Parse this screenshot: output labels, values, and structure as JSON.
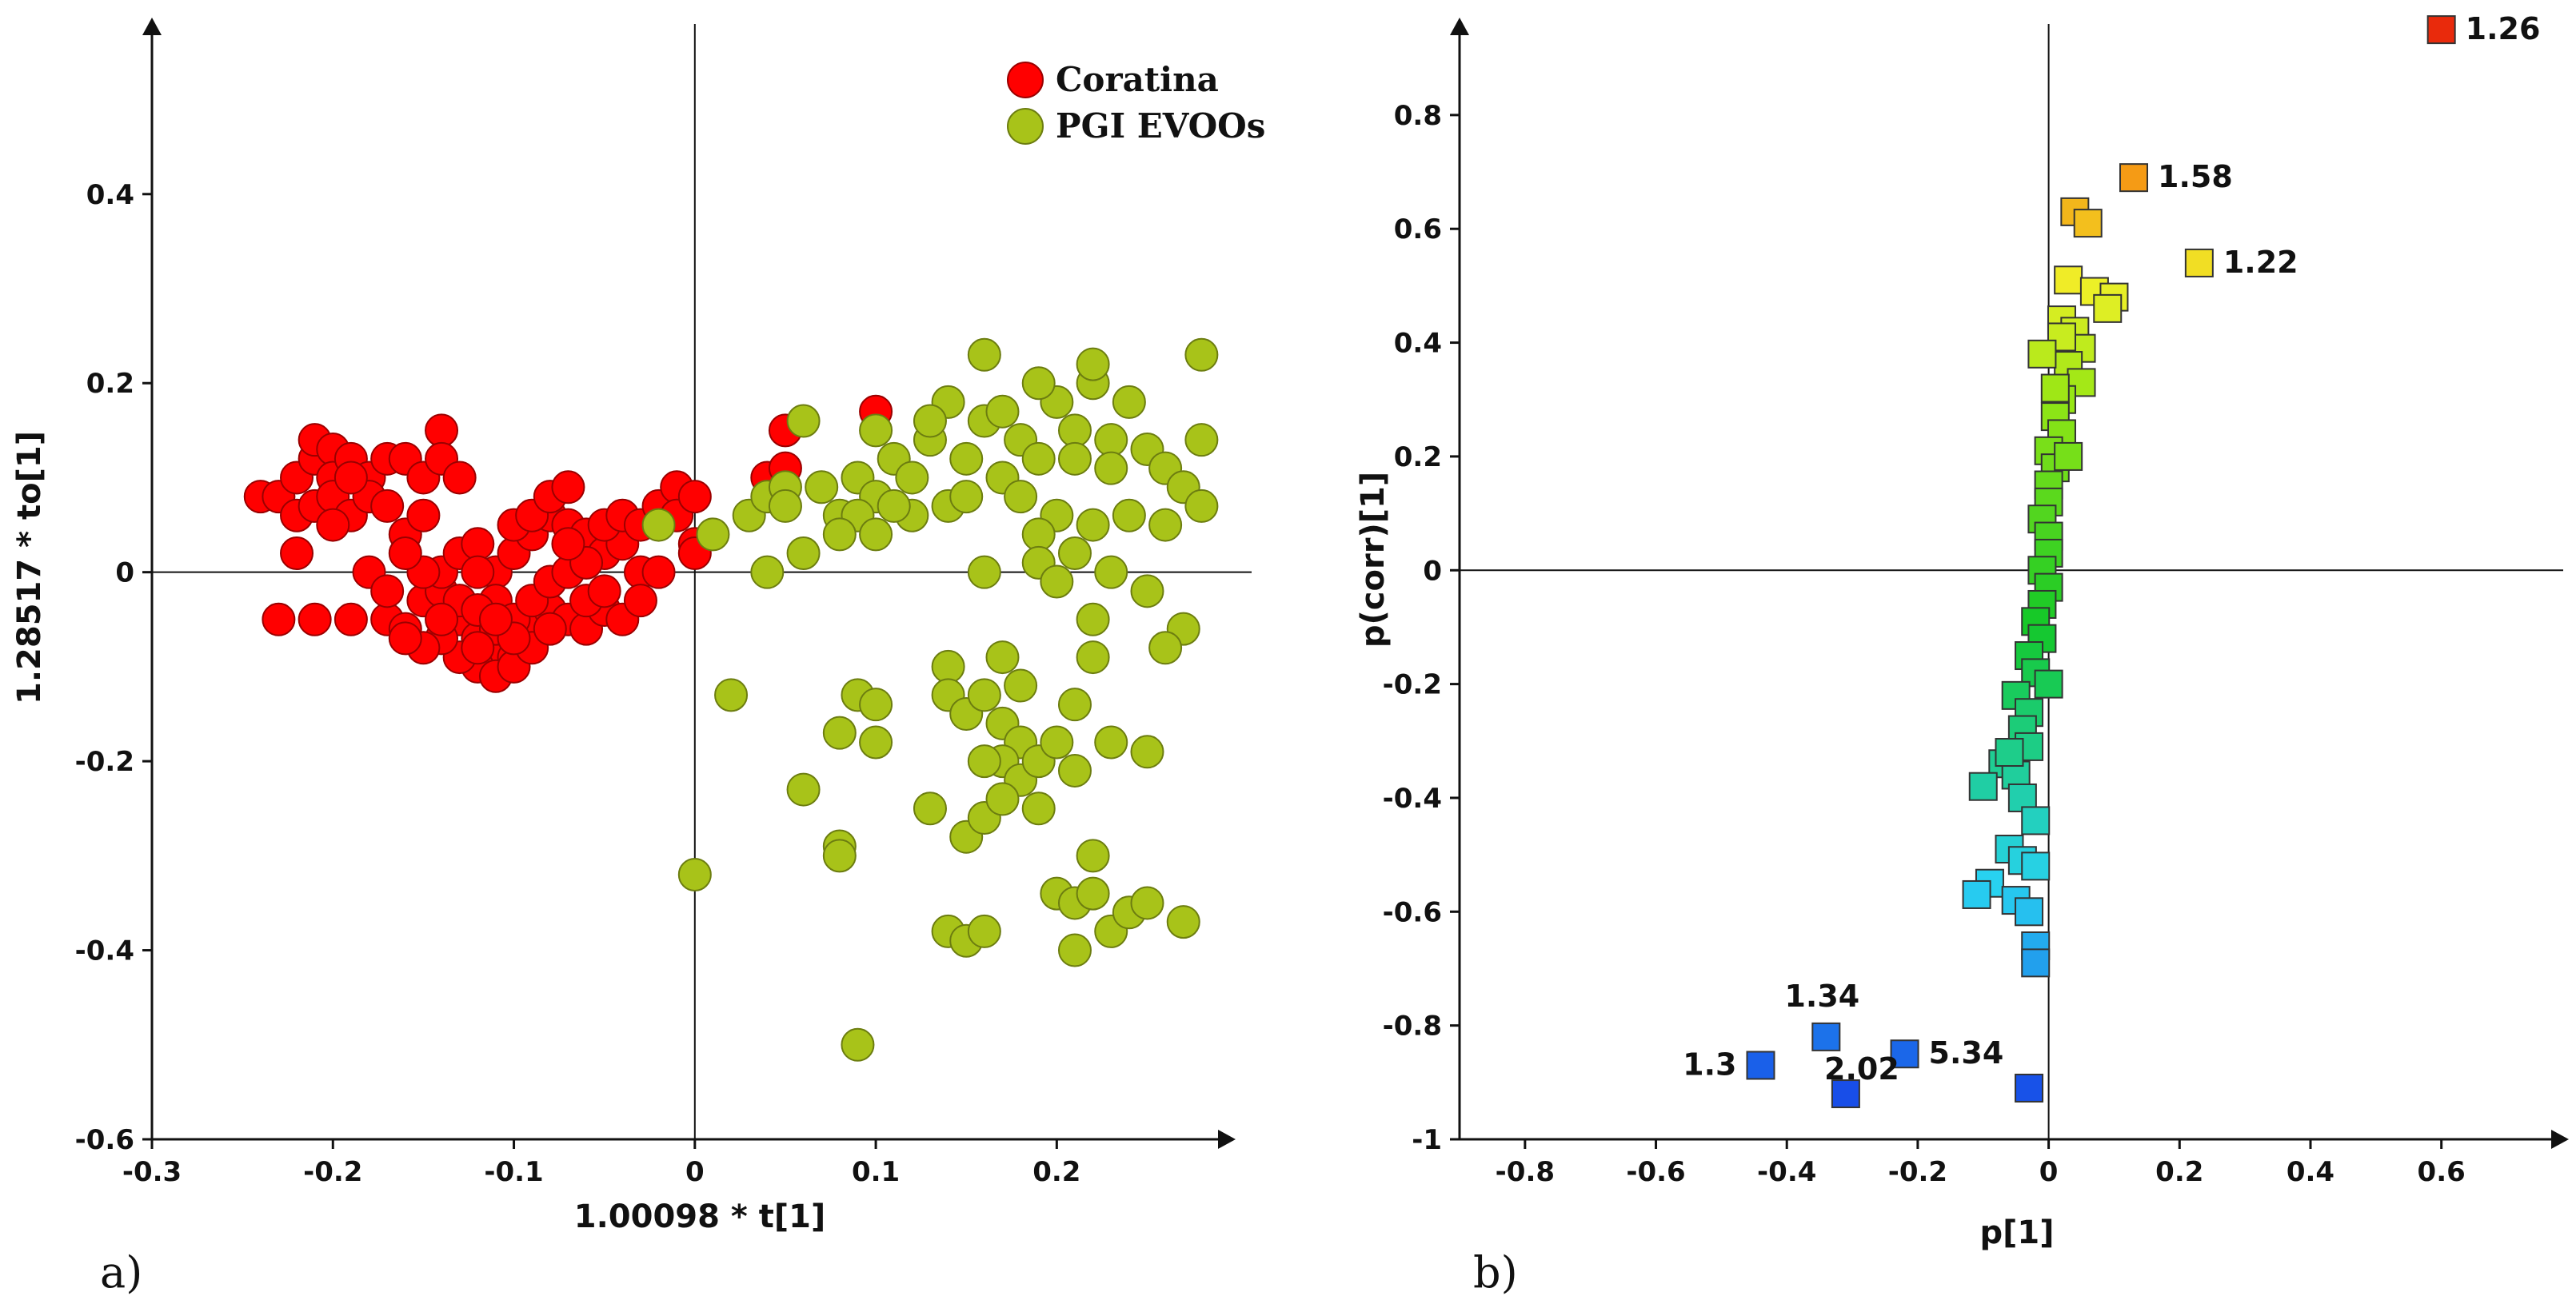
{
  "chart_data": [
    {
      "type": "scatter",
      "panel_label": "a)",
      "xlabel": "1.00098 * t[1]",
      "ylabel": "1.28517 * to[1]",
      "xlim": [
        -0.3,
        0.29
      ],
      "ylim": [
        -0.6,
        0.58
      ],
      "xticks": [
        -0.3,
        -0.2,
        -0.1,
        0,
        0.1,
        0.2
      ],
      "yticks": [
        -0.6,
        -0.4,
        -0.2,
        0,
        0.2,
        0.4
      ],
      "legend_position": "top-right",
      "series": [
        {
          "name": "Coratina",
          "color": "#ff0000",
          "points": [
            [
              -0.24,
              0.08
            ],
            [
              -0.23,
              0.08
            ],
            [
              -0.22,
              0.1
            ],
            [
              -0.21,
              0.12
            ],
            [
              -0.21,
              0.14
            ],
            [
              -0.2,
              0.13
            ],
            [
              -0.2,
              0.1
            ],
            [
              -0.19,
              0.12
            ],
            [
              -0.18,
              0.1
            ],
            [
              -0.17,
              0.12
            ],
            [
              -0.16,
              0.12
            ],
            [
              -0.15,
              0.1
            ],
            [
              -0.14,
              0.15
            ],
            [
              -0.14,
              0.12
            ],
            [
              -0.22,
              0.06
            ],
            [
              -0.21,
              0.07
            ],
            [
              -0.2,
              0.08
            ],
            [
              -0.19,
              0.06
            ],
            [
              -0.18,
              0.08
            ],
            [
              -0.17,
              0.07
            ],
            [
              -0.16,
              0.04
            ],
            [
              -0.15,
              0.06
            ],
            [
              -0.22,
              0.02
            ],
            [
              -0.21,
              -0.05
            ],
            [
              -0.23,
              -0.05
            ],
            [
              -0.19,
              -0.05
            ],
            [
              -0.17,
              -0.05
            ],
            [
              -0.16,
              -0.06
            ],
            [
              -0.15,
              -0.03
            ],
            [
              -0.14,
              -0.02
            ],
            [
              -0.13,
              -0.05
            ],
            [
              -0.12,
              -0.07
            ],
            [
              -0.11,
              -0.08
            ],
            [
              -0.1,
              -0.09
            ],
            [
              -0.09,
              -0.06
            ],
            [
              -0.08,
              -0.04
            ],
            [
              -0.07,
              -0.05
            ],
            [
              -0.06,
              -0.06
            ],
            [
              -0.05,
              -0.04
            ],
            [
              -0.04,
              -0.05
            ],
            [
              -0.12,
              -0.1
            ],
            [
              -0.11,
              -0.11
            ],
            [
              -0.1,
              -0.1
            ],
            [
              -0.13,
              -0.09
            ],
            [
              -0.14,
              -0.07
            ],
            [
              -0.15,
              -0.08
            ],
            [
              -0.16,
              -0.07
            ],
            [
              -0.14,
              0.0
            ],
            [
              -0.13,
              0.02
            ],
            [
              -0.12,
              0.03
            ],
            [
              -0.11,
              0.0
            ],
            [
              -0.1,
              0.02
            ],
            [
              -0.09,
              0.04
            ],
            [
              -0.08,
              0.06
            ],
            [
              -0.07,
              0.05
            ],
            [
              -0.06,
              0.04
            ],
            [
              -0.05,
              0.02
            ],
            [
              -0.04,
              0.03
            ],
            [
              -0.03,
              0.0
            ],
            [
              -0.03,
              -0.03
            ],
            [
              -0.1,
              0.05
            ],
            [
              -0.09,
              0.06
            ],
            [
              -0.08,
              0.08
            ],
            [
              -0.07,
              0.09
            ],
            [
              -0.12,
              0.0
            ],
            [
              -0.11,
              -0.03
            ],
            [
              -0.1,
              -0.05
            ],
            [
              -0.09,
              -0.03
            ],
            [
              -0.08,
              -0.01
            ],
            [
              -0.07,
              0.0
            ],
            [
              -0.06,
              0.01
            ],
            [
              -0.13,
              -0.03
            ],
            [
              -0.12,
              -0.04
            ],
            [
              -0.11,
              -0.06
            ],
            [
              -0.15,
              0.0
            ],
            [
              -0.16,
              0.02
            ],
            [
              -0.18,
              0.0
            ],
            [
              -0.06,
              -0.03
            ],
            [
              -0.05,
              0.05
            ],
            [
              -0.04,
              0.06
            ],
            [
              -0.03,
              0.05
            ],
            [
              -0.02,
              0.07
            ],
            [
              -0.01,
              0.09
            ],
            [
              -0.01,
              0.06
            ],
            [
              0.0,
              0.08
            ],
            [
              0.0,
              0.03
            ],
            [
              0.0,
              0.02
            ],
            [
              -0.02,
              0.0
            ],
            [
              0.04,
              0.1
            ],
            [
              0.05,
              0.11
            ],
            [
              0.05,
              0.15
            ],
            [
              0.1,
              0.17
            ],
            [
              -0.09,
              -0.08
            ],
            [
              -0.08,
              -0.06
            ],
            [
              -0.1,
              -0.07
            ],
            [
              -0.11,
              -0.05
            ],
            [
              -0.12,
              -0.08
            ],
            [
              -0.14,
              -0.05
            ],
            [
              -0.17,
              -0.02
            ],
            [
              -0.2,
              0.05
            ],
            [
              -0.19,
              0.1
            ],
            [
              -0.13,
              0.1
            ],
            [
              -0.07,
              0.03
            ],
            [
              -0.05,
              -0.02
            ]
          ]
        },
        {
          "name": "PGI EVOOs",
          "color": "#a8c319",
          "points": [
            [
              -0.02,
              0.05
            ],
            [
              0.01,
              0.04
            ],
            [
              0.03,
              0.06
            ],
            [
              0.04,
              0.08
            ],
            [
              0.05,
              0.09
            ],
            [
              0.06,
              0.16
            ],
            [
              0.07,
              0.09
            ],
            [
              0.08,
              0.06
            ],
            [
              0.09,
              0.1
            ],
            [
              0.1,
              0.08
            ],
            [
              0.11,
              0.12
            ],
            [
              0.12,
              0.1
            ],
            [
              0.13,
              0.14
            ],
            [
              0.14,
              0.18
            ],
            [
              0.15,
              0.12
            ],
            [
              0.16,
              0.16
            ],
            [
              0.17,
              0.1
            ],
            [
              0.18,
              0.14
            ],
            [
              0.19,
              0.12
            ],
            [
              0.2,
              0.18
            ],
            [
              0.21,
              0.15
            ],
            [
              0.22,
              0.2
            ],
            [
              0.23,
              0.14
            ],
            [
              0.24,
              0.18
            ],
            [
              0.25,
              0.13
            ],
            [
              0.26,
              0.11
            ],
            [
              0.27,
              0.09
            ],
            [
              0.28,
              0.14
            ],
            [
              0.28,
              0.23
            ],
            [
              0.16,
              0.23
            ],
            [
              0.22,
              0.22
            ],
            [
              0.12,
              0.06
            ],
            [
              0.14,
              0.07
            ],
            [
              0.18,
              0.08
            ],
            [
              0.2,
              0.06
            ],
            [
              0.22,
              0.05
            ],
            [
              0.24,
              0.06
            ],
            [
              0.26,
              0.05
            ],
            [
              0.28,
              0.07
            ],
            [
              0.1,
              0.15
            ],
            [
              0.13,
              0.16
            ],
            [
              0.17,
              0.17
            ],
            [
              0.19,
              0.2
            ],
            [
              0.21,
              0.12
            ],
            [
              0.23,
              0.11
            ],
            [
              0.15,
              0.08
            ],
            [
              0.11,
              0.07
            ],
            [
              0.09,
              0.06
            ],
            [
              0.05,
              0.07
            ],
            [
              0.04,
              0.0
            ],
            [
              0.06,
              0.02
            ],
            [
              0.08,
              0.04
            ],
            [
              0.1,
              0.04
            ],
            [
              0.16,
              0.0
            ],
            [
              0.19,
              0.04
            ],
            [
              0.21,
              0.02
            ],
            [
              0.23,
              0.0
            ],
            [
              0.25,
              -0.02
            ],
            [
              0.27,
              -0.06
            ],
            [
              0.19,
              0.01
            ],
            [
              0.2,
              -0.01
            ],
            [
              0.22,
              -0.05
            ],
            [
              0.22,
              -0.09
            ],
            [
              0.26,
              -0.08
            ],
            [
              0.02,
              -0.13
            ],
            [
              0.06,
              -0.23
            ],
            [
              0.08,
              -0.17
            ],
            [
              0.09,
              -0.13
            ],
            [
              0.1,
              -0.14
            ],
            [
              0.1,
              -0.18
            ],
            [
              0.14,
              -0.1
            ],
            [
              0.14,
              -0.13
            ],
            [
              0.15,
              -0.15
            ],
            [
              0.16,
              -0.13
            ],
            [
              0.17,
              -0.09
            ],
            [
              0.17,
              -0.16
            ],
            [
              0.18,
              -0.12
            ],
            [
              0.18,
              -0.18
            ],
            [
              0.17,
              -0.2
            ],
            [
              0.18,
              -0.22
            ],
            [
              0.19,
              -0.2
            ],
            [
              0.2,
              -0.18
            ],
            [
              0.21,
              -0.14
            ],
            [
              0.21,
              -0.21
            ],
            [
              0.23,
              -0.18
            ],
            [
              0.25,
              -0.19
            ],
            [
              0.16,
              -0.2
            ],
            [
              0.13,
              -0.25
            ],
            [
              0.15,
              -0.28
            ],
            [
              0.16,
              -0.26
            ],
            [
              0.17,
              -0.24
            ],
            [
              0.19,
              -0.25
            ],
            [
              0.08,
              -0.29
            ],
            [
              0.08,
              -0.3
            ],
            [
              0.0,
              -0.32
            ],
            [
              0.09,
              -0.5
            ],
            [
              0.14,
              -0.38
            ],
            [
              0.15,
              -0.39
            ],
            [
              0.16,
              -0.38
            ],
            [
              0.2,
              -0.34
            ],
            [
              0.21,
              -0.35
            ],
            [
              0.22,
              -0.34
            ],
            [
              0.21,
              -0.4
            ],
            [
              0.23,
              -0.38
            ],
            [
              0.24,
              -0.36
            ],
            [
              0.22,
              -0.3
            ],
            [
              0.27,
              -0.37
            ],
            [
              0.25,
              -0.35
            ]
          ]
        }
      ]
    },
    {
      "type": "scatter",
      "panel_label": "b)",
      "xlabel": "p[1]",
      "ylabel": "p(corr)[1]",
      "xlim": [
        -0.9,
        0.78
      ],
      "ylim": [
        -1.0,
        0.96
      ],
      "xticks": [
        -0.8,
        -0.6,
        -0.4,
        -0.2,
        0,
        0.2,
        0.4,
        0.6
      ],
      "yticks": [
        -1,
        -0.8,
        -0.6,
        -0.4,
        -0.2,
        0,
        0.2,
        0.4,
        0.6,
        0.8
      ],
      "yticklabels": [
        "-1",
        "-0.8",
        "-0.6",
        "-0.4",
        "-0.2",
        "0",
        "0.2",
        "0.4",
        "0.6",
        "0.8"
      ],
      "marker": "square",
      "color_scale": "p(corr) value, blue (low) to red (high)",
      "points": [
        [
          0.6,
          0.95
        ],
        [
          0.13,
          0.69
        ],
        [
          0.04,
          0.63
        ],
        [
          0.06,
          0.61
        ],
        [
          0.23,
          0.54
        ],
        [
          0.03,
          0.51
        ],
        [
          0.07,
          0.49
        ],
        [
          0.1,
          0.48
        ],
        [
          0.09,
          0.46
        ],
        [
          0.02,
          0.44
        ],
        [
          0.04,
          0.42
        ],
        [
          0.05,
          0.39
        ],
        [
          0.03,
          0.36
        ],
        [
          0.05,
          0.33
        ],
        [
          0.02,
          0.3
        ],
        [
          0.01,
          0.27
        ],
        [
          0.02,
          0.24
        ],
        [
          0.0,
          0.21
        ],
        [
          0.01,
          0.18
        ],
        [
          0.0,
          0.15
        ],
        [
          0.0,
          0.12
        ],
        [
          -0.01,
          0.09
        ],
        [
          0.0,
          0.06
        ],
        [
          0.0,
          0.03
        ],
        [
          -0.01,
          0.0
        ],
        [
          0.0,
          -0.03
        ],
        [
          -0.01,
          -0.06
        ],
        [
          -0.02,
          -0.09
        ],
        [
          -0.01,
          -0.12
        ],
        [
          -0.03,
          -0.15
        ],
        [
          -0.02,
          -0.18
        ],
        [
          -0.05,
          -0.22
        ],
        [
          -0.03,
          -0.25
        ],
        [
          -0.04,
          -0.28
        ],
        [
          -0.03,
          -0.31
        ],
        [
          -0.07,
          -0.34
        ],
        [
          -0.05,
          -0.36
        ],
        [
          -0.1,
          -0.38
        ],
        [
          -0.04,
          -0.4
        ],
        [
          -0.06,
          -0.49
        ],
        [
          -0.04,
          -0.51
        ],
        [
          -0.02,
          -0.52
        ],
        [
          -0.09,
          -0.55
        ],
        [
          -0.11,
          -0.57
        ],
        [
          -0.05,
          -0.58
        ],
        [
          -0.03,
          -0.6
        ],
        [
          -0.02,
          -0.66
        ],
        [
          -0.02,
          -0.69
        ],
        [
          -0.34,
          -0.82
        ],
        [
          -0.22,
          -0.85
        ],
        [
          -0.44,
          -0.87
        ],
        [
          -0.31,
          -0.92
        ],
        [
          -0.03,
          -0.91
        ],
        [
          0.02,
          0.41
        ],
        [
          0.01,
          0.32
        ],
        [
          0.03,
          0.2
        ],
        [
          -0.01,
          0.38
        ],
        [
          0.0,
          -0.2
        ],
        [
          -0.02,
          -0.44
        ],
        [
          -0.06,
          -0.32
        ]
      ],
      "labels": [
        {
          "text": "1.26",
          "x": 0.6,
          "y": 0.95
        },
        {
          "text": "1.58",
          "x": 0.13,
          "y": 0.69
        },
        {
          "text": "1.22",
          "x": 0.23,
          "y": 0.54
        },
        {
          "text": "1.34",
          "x": -0.34,
          "y": -0.82
        },
        {
          "text": "2.02",
          "x": -0.31,
          "y": -0.92
        },
        {
          "text": "5.34",
          "x": -0.22,
          "y": -0.85
        },
        {
          "text": "1.3",
          "x": -0.44,
          "y": -0.87
        }
      ]
    }
  ]
}
